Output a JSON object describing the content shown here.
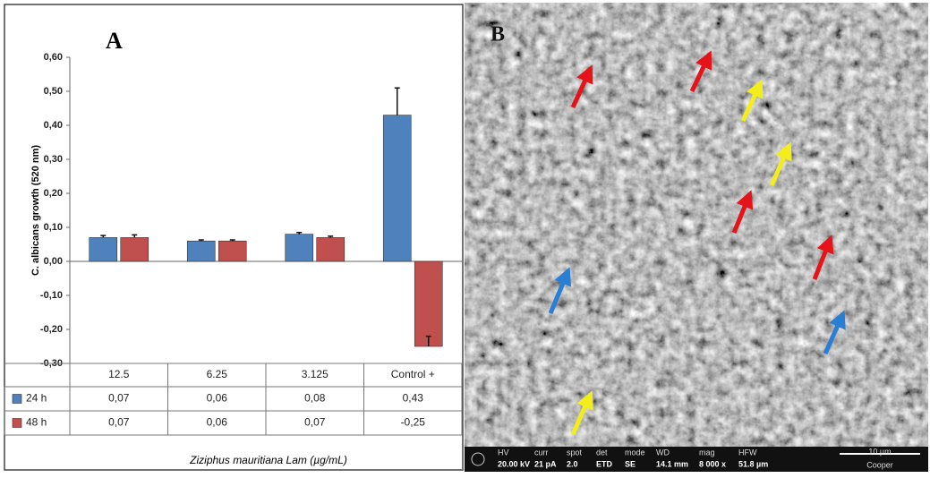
{
  "chart_data": {
    "type": "bar",
    "panel_label": "A",
    "y_label": "C. albicans growth (520 nm)",
    "x_label": "Ziziphus mauritiana Lam (µg/mL)",
    "categories": [
      "12.5",
      "6.25",
      "3.125",
      "Control +"
    ],
    "series": [
      {
        "name": "24 h",
        "color": "#4f81bd",
        "values": [
          0.07,
          0.06,
          0.08,
          0.43
        ],
        "value_labels": [
          "0,07",
          "0,06",
          "0,08",
          "0,43"
        ],
        "errors": [
          0.006,
          0.003,
          0.005,
          0.08
        ]
      },
      {
        "name": "48 h",
        "color": "#c0504d",
        "values": [
          0.07,
          0.06,
          0.07,
          -0.25
        ],
        "value_labels": [
          "0,07",
          "0,06",
          "0,07",
          "-0,25"
        ],
        "errors": [
          0.008,
          0.003,
          0.004,
          0.03
        ]
      }
    ],
    "ylim": [
      -0.3,
      0.6
    ],
    "yticks": [
      {
        "value": -0.3,
        "label": "-0,30"
      },
      {
        "value": -0.2,
        "label": "-0,20"
      },
      {
        "value": -0.1,
        "label": "-0,10"
      },
      {
        "value": 0,
        "label": "0,00"
      },
      {
        "value": 0.1,
        "label": "0,10"
      },
      {
        "value": 0.2,
        "label": "0,20"
      },
      {
        "value": 0.3,
        "label": "0,30"
      },
      {
        "value": 0.4,
        "label": "0,40"
      },
      {
        "value": 0.5,
        "label": "0,50"
      },
      {
        "value": 0.6,
        "label": "0,60"
      }
    ],
    "grid": false
  },
  "panel_b": {
    "label": "B",
    "info": [
      {
        "name": "HV",
        "value": "20.00 kV"
      },
      {
        "name": "curr",
        "value": "21 pA"
      },
      {
        "name": "spot",
        "value": "2.0"
      },
      {
        "name": "det",
        "value": "ETD"
      },
      {
        "name": "mode",
        "value": "SE"
      },
      {
        "name": "WD",
        "value": "14.1 mm"
      },
      {
        "name": "mag",
        "value": "8 000 x"
      },
      {
        "name": "HFW",
        "value": "51.8 µm"
      }
    ],
    "scale": "10 µm",
    "operator": "Cooper"
  }
}
